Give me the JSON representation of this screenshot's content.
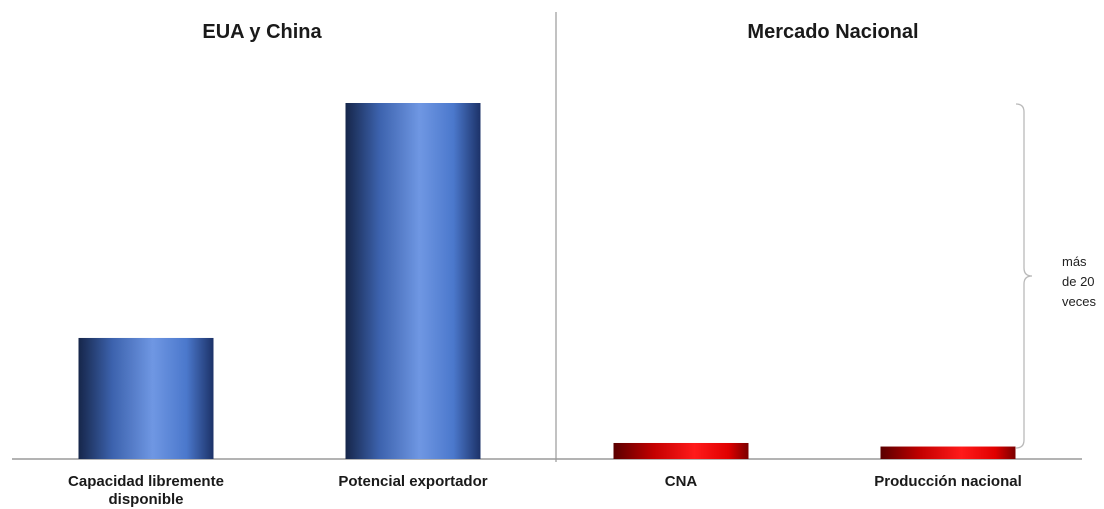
{
  "chart_data": {
    "type": "bar",
    "panels": [
      {
        "title": "EUA y China"
      },
      {
        "title": "Mercado Nacional"
      }
    ],
    "categories": [
      [
        "Capacidad libremente",
        "disponible"
      ],
      [
        "Potencial exportador"
      ],
      [
        "CNA"
      ],
      [
        "Producción nacional"
      ]
    ],
    "values": [
      34,
      100,
      4.5,
      3.5
    ],
    "colors": [
      "#3f67b8",
      "#3f67b8",
      "#e00000",
      "#e00000"
    ],
    "ylim": [
      0,
      100
    ],
    "annotation": {
      "lines": [
        "más",
        "de 20",
        "veces"
      ]
    },
    "grid": false,
    "legend": "none"
  }
}
